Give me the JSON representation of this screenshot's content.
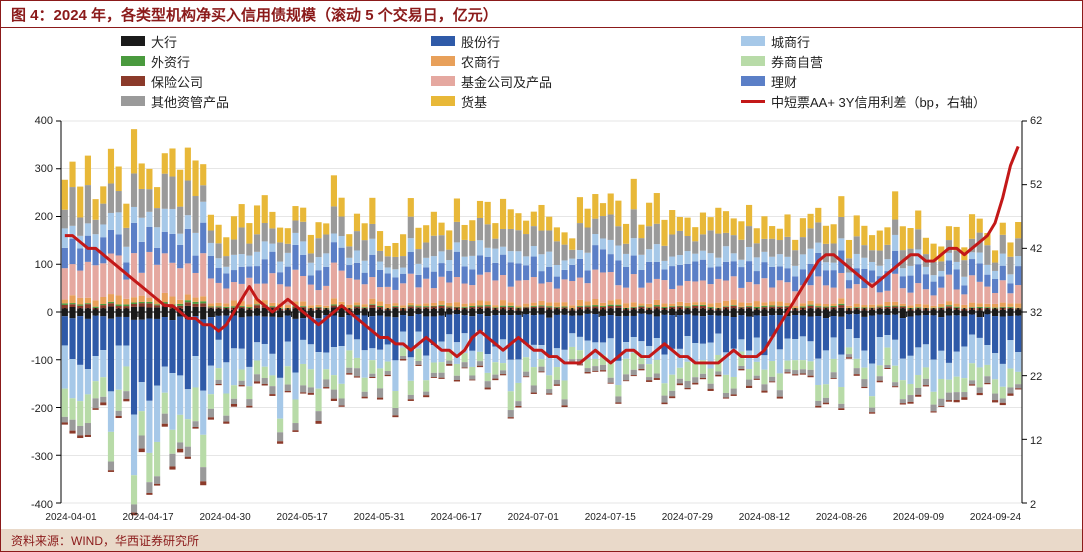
{
  "title_prefix": "图 4：",
  "title": "2024 年，各类型机构净买入信用债规模（滚动 5 个交易日，亿元）",
  "source_label": "资料来源：WIND，华西证券研究所",
  "colors": {
    "border": "#8b1a1a",
    "footer_bg": "#e9d9c9",
    "grid": "#cccccc",
    "axis": "#000000",
    "text": "#222222"
  },
  "chart": {
    "type": "stacked-bar-with-line",
    "y_left": {
      "min": -400,
      "max": 400,
      "step": 100
    },
    "y_right": {
      "min": 2,
      "max": 62,
      "step": 10
    },
    "x_labels": [
      "2024-04-01",
      "2024-04-17",
      "2024-04-30",
      "2024-05-17",
      "2024-05-31",
      "2024-06-17",
      "2024-07-01",
      "2024-07-15",
      "2024-07-29",
      "2024-08-12",
      "2024-08-26",
      "2024-09-09",
      "2024-09-24"
    ],
    "x_label_positions_pct": [
      0,
      8,
      16,
      24,
      32,
      40,
      48,
      56,
      64,
      72,
      80,
      88,
      96
    ],
    "legend": [
      {
        "key": "dahang",
        "label": "大行",
        "color": "#1a1a1a"
      },
      {
        "key": "gufen",
        "label": "股份行",
        "color": "#2f5aa8"
      },
      {
        "key": "chengshang",
        "label": "城商行",
        "color": "#a6c8e8"
      },
      {
        "key": "waizi",
        "label": "外资行",
        "color": "#4a9a3e"
      },
      {
        "key": "nongshang",
        "label": "农商行",
        "color": "#e8a05a"
      },
      {
        "key": "quanshang",
        "label": "券商自营",
        "color": "#b8dba8"
      },
      {
        "key": "baoxian",
        "label": "保险公司",
        "color": "#8b3a2a"
      },
      {
        "key": "jijin",
        "label": "基金公司及产品",
        "color": "#e5a8a0"
      },
      {
        "key": "licai",
        "label": "理财",
        "color": "#5b7fc7"
      },
      {
        "key": "qita",
        "label": "其他资管产品",
        "color": "#9a9a9a"
      },
      {
        "key": "huoji",
        "label": "货基",
        "color": "#e8b838"
      },
      {
        "key": "spread",
        "label": "中短票AA+ 3Y信用利差（bp，右轴）",
        "color": "#c31818",
        "is_line": true
      }
    ],
    "n_points": 125,
    "bars": {
      "pos_stack_order": [
        "dahang",
        "baoxian",
        "waizi",
        "nongshang",
        "jijin",
        "licai",
        "chengshang",
        "qita",
        "huoji"
      ],
      "neg_stack_order": [
        "dahang",
        "gufen",
        "chengshang",
        "quanshang",
        "qita",
        "baoxian"
      ],
      "seed": 7
    },
    "spread_line": [
      44,
      44,
      43,
      42,
      42,
      41,
      40,
      39,
      38,
      37,
      36,
      35,
      34,
      33,
      33,
      32,
      31,
      31,
      30,
      30,
      29,
      30,
      32,
      34,
      36,
      34,
      33,
      32,
      33,
      34,
      33,
      32,
      31,
      30,
      31,
      32,
      33,
      32,
      31,
      30,
      29,
      28,
      28,
      27,
      27,
      26,
      27,
      28,
      27,
      26,
      26,
      25,
      26,
      28,
      29,
      28,
      27,
      26,
      27,
      28,
      27,
      26,
      26,
      25,
      25,
      24,
      24,
      24,
      25,
      26,
      25,
      24,
      25,
      26,
      26,
      25,
      25,
      26,
      27,
      26,
      25,
      25,
      24,
      24,
      24,
      24,
      25,
      26,
      25,
      25,
      25,
      26,
      28,
      30,
      32,
      34,
      36,
      38,
      40,
      41,
      41,
      40,
      39,
      38,
      37,
      36,
      37,
      38,
      39,
      40,
      41,
      41,
      40,
      40,
      41,
      42,
      42,
      41,
      42,
      43,
      44,
      46,
      50,
      55,
      58
    ]
  }
}
